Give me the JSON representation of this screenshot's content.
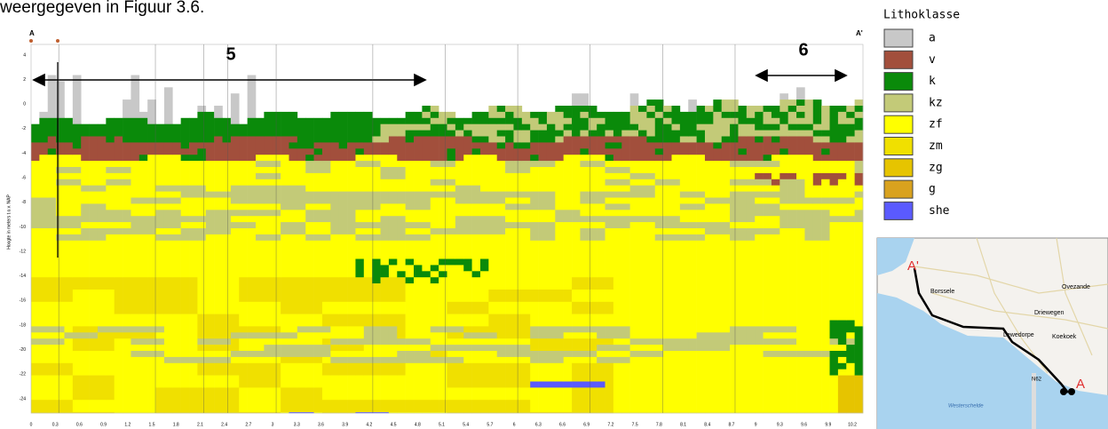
{
  "header": {
    "text": "weergegeven in Figuur 3.6."
  },
  "section": {
    "start_label": "A",
    "end_label": "A'",
    "y_axis_label": "Hoogte in meters t.o.v. NAP",
    "y_ticks": [
      "4",
      "2",
      "0",
      "-2",
      "-4",
      "-6",
      "-8",
      "-10",
      "-12",
      "-14",
      "-16",
      "-18",
      "-20",
      "-22",
      "-24"
    ],
    "x_ticks": [
      "0",
      "0.3",
      "0.6",
      "0.9",
      "1.2",
      "1.5",
      "1.8",
      "2.1",
      "2.4",
      "2.7",
      "3",
      "3.3",
      "3.6",
      "3.9",
      "4.2",
      "4.5",
      "4.8",
      "5.1",
      "5.4",
      "5.7",
      "6",
      "6.3",
      "6.6",
      "6.9",
      "7.2",
      "7.5",
      "7.8",
      "8.1",
      "8.4",
      "8.7",
      "9",
      "9.3",
      "9.6",
      "9.9",
      "10.2"
    ],
    "annotations": [
      "5",
      "6"
    ]
  },
  "legend": {
    "title": "Lithoklasse",
    "items": [
      {
        "label": "a",
        "color": "#c8c8c8"
      },
      {
        "label": "v",
        "color": "#a24f3c"
      },
      {
        "label": "k",
        "color": "#0a8a0a"
      },
      {
        "label": "kz",
        "color": "#c3ca78"
      },
      {
        "label": "zf",
        "color": "#ffff00"
      },
      {
        "label": "zm",
        "color": "#f0e000"
      },
      {
        "label": "zg",
        "color": "#e6c400"
      },
      {
        "label": "g",
        "color": "#d9a21e"
      },
      {
        "label": "she",
        "color": "#5a5aff"
      }
    ]
  },
  "map": {
    "labels": [
      "A'",
      "Borssele",
      "Ovezande",
      "Driewegen",
      "Lewedorpe",
      "Koekoek",
      "N62",
      "Westerschelde",
      "A"
    ]
  }
}
